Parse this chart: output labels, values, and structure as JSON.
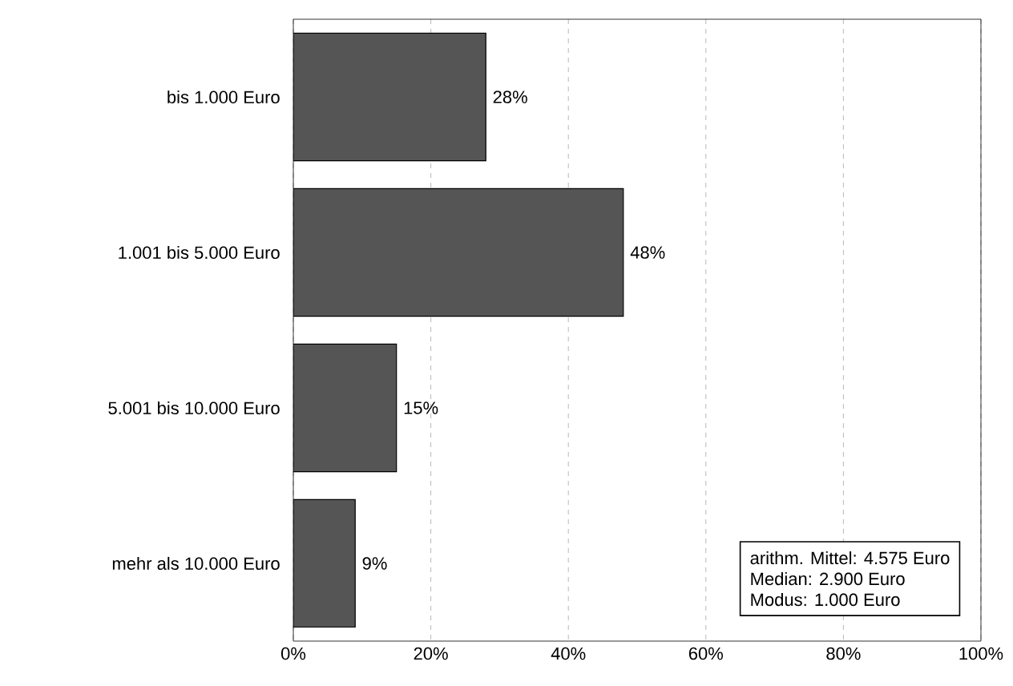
{
  "chart_data": {
    "type": "bar",
    "orientation": "horizontal",
    "categories": [
      "bis 1.000 Euro",
      "1.001 bis 5.000 Euro",
      "5.001 bis 10.000 Euro",
      "mehr als 10.000 Euro"
    ],
    "values": [
      28,
      48,
      15,
      9
    ],
    "value_labels": [
      "28%",
      "48%",
      "15%",
      "9%"
    ],
    "color": "#555555",
    "xlim": [
      0,
      100
    ],
    "xticks": [
      {
        "value": 0,
        "label": "0%"
      },
      {
        "value": 20,
        "label": "20%"
      },
      {
        "value": 40,
        "label": "40%"
      },
      {
        "value": 60,
        "label": "60%"
      },
      {
        "value": 80,
        "label": "80%"
      },
      {
        "value": 100,
        "label": "100%"
      }
    ],
    "grid": "x",
    "annotations": [
      "arithm. Mittel: 4.575 Euro",
      "Median: 2.900 Euro",
      "Modus: 1.000 Euro"
    ]
  }
}
